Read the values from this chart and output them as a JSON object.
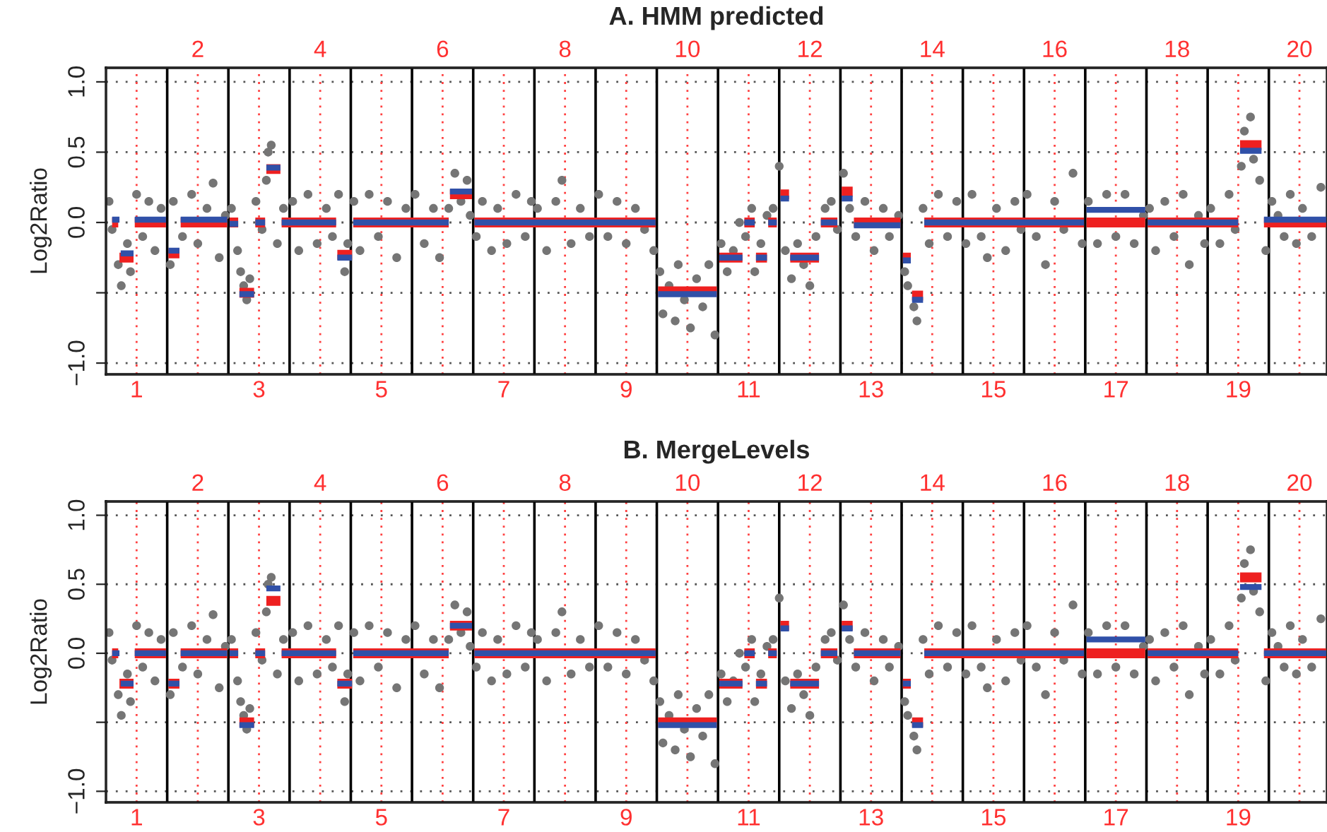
{
  "chart_data": [
    {
      "type": "scatter",
      "title": "A. HMM predicted",
      "ylabel": "Log2Ratio",
      "xlim": [
        0.5,
        20.45
      ],
      "ylim": [
        -1.08,
        1.1
      ],
      "yticks": [
        {
          "value": -1,
          "label": "−1.0"
        },
        {
          "value": -0.5,
          "label": null
        },
        {
          "value": 0,
          "label": "0.0"
        },
        {
          "value": 0.5,
          "label": "0.5"
        },
        {
          "value": 1,
          "label": "1.0"
        }
      ],
      "xticks": [
        {
          "value": 1,
          "label": "1"
        },
        {
          "value": 3,
          "label": "3"
        },
        {
          "value": 5,
          "label": "5"
        },
        {
          "value": 7,
          "label": "7"
        },
        {
          "value": 9,
          "label": "9"
        },
        {
          "value": 11,
          "label": "11"
        },
        {
          "value": 13,
          "label": "13"
        },
        {
          "value": 15,
          "label": "15"
        },
        {
          "value": 17,
          "label": "17"
        },
        {
          "value": 19,
          "label": "19"
        }
      ],
      "x2lim": [
        0.5,
        20.45
      ],
      "x2ticks": [
        {
          "value": 2,
          "label": "2"
        },
        {
          "value": 4,
          "label": "4"
        },
        {
          "value": 6,
          "label": "6"
        },
        {
          "value": 8,
          "label": "8"
        },
        {
          "value": 10,
          "label": "10"
        },
        {
          "value": 12,
          "label": "12"
        },
        {
          "value": 14,
          "label": "14"
        },
        {
          "value": 16,
          "label": "16"
        },
        {
          "value": 18,
          "label": "18"
        },
        {
          "value": 20,
          "label": "20"
        }
      ],
      "grid": "y",
      "ref_lines": [
        {
          "axis": "x",
          "value": 1.5,
          "color": "#000000"
        },
        {
          "axis": "x",
          "value": 2.5,
          "color": "#000000"
        },
        {
          "axis": "x",
          "value": 3.5,
          "color": "#000000"
        },
        {
          "axis": "x",
          "value": 4.5,
          "color": "#000000"
        },
        {
          "axis": "x",
          "value": 5.5,
          "color": "#000000"
        },
        {
          "axis": "x",
          "value": 6.5,
          "color": "#000000"
        },
        {
          "axis": "x",
          "value": 7.5,
          "color": "#000000"
        },
        {
          "axis": "x",
          "value": 8.5,
          "color": "#000000"
        },
        {
          "axis": "x",
          "value": 9.5,
          "color": "#000000"
        },
        {
          "axis": "x",
          "value": 10.5,
          "color": "#000000"
        },
        {
          "axis": "x",
          "value": 11.5,
          "color": "#000000"
        },
        {
          "axis": "x",
          "value": 12.5,
          "color": "#000000"
        },
        {
          "axis": "x",
          "value": 13.5,
          "color": "#000000"
        },
        {
          "axis": "x",
          "value": 14.5,
          "color": "#000000"
        },
        {
          "axis": "x",
          "value": 15.5,
          "color": "#000000"
        },
        {
          "axis": "x",
          "value": 16.5,
          "color": "#000000"
        },
        {
          "axis": "x",
          "value": 17.5,
          "color": "#000000"
        },
        {
          "axis": "x",
          "value": 18.5,
          "color": "#000000"
        },
        {
          "axis": "x",
          "value": 19.5,
          "color": "#000000"
        },
        {
          "axis": "x",
          "value": 1,
          "color": "#ff4040",
          "line_style": "dotted"
        },
        {
          "axis": "x",
          "value": 2,
          "color": "#ff4040",
          "line_style": "dotted"
        },
        {
          "axis": "x",
          "value": 3,
          "color": "#ff4040",
          "line_style": "dotted"
        },
        {
          "axis": "x",
          "value": 4,
          "color": "#ff4040",
          "line_style": "dotted"
        },
        {
          "axis": "x",
          "value": 5,
          "color": "#ff4040",
          "line_style": "dotted"
        },
        {
          "axis": "x",
          "value": 6,
          "color": "#ff4040",
          "line_style": "dotted"
        },
        {
          "axis": "x",
          "value": 7,
          "color": "#ff4040",
          "line_style": "dotted"
        },
        {
          "axis": "x",
          "value": 8,
          "color": "#ff4040",
          "line_style": "dotted"
        },
        {
          "axis": "x",
          "value": 9,
          "color": "#ff4040",
          "line_style": "dotted"
        },
        {
          "axis": "x",
          "value": 10,
          "color": "#ff4040",
          "line_style": "dotted"
        },
        {
          "axis": "x",
          "value": 11,
          "color": "#ff4040",
          "line_style": "dotted"
        },
        {
          "axis": "x",
          "value": 12,
          "color": "#ff4040",
          "line_style": "dotted"
        },
        {
          "axis": "x",
          "value": 13,
          "color": "#ff4040",
          "line_style": "dotted"
        },
        {
          "axis": "x",
          "value": 14,
          "color": "#ff4040",
          "line_style": "dotted"
        },
        {
          "axis": "x",
          "value": 15,
          "color": "#ff4040",
          "line_style": "dotted"
        },
        {
          "axis": "x",
          "value": 16,
          "color": "#ff4040",
          "line_style": "dotted"
        },
        {
          "axis": "x",
          "value": 17,
          "color": "#ff4040",
          "line_style": "dotted"
        },
        {
          "axis": "x",
          "value": 18,
          "color": "#ff4040",
          "line_style": "dotted"
        },
        {
          "axis": "x",
          "value": 19,
          "color": "#ff4040",
          "line_style": "dotted"
        },
        {
          "axis": "x",
          "value": 20,
          "color": "#ff4040",
          "line_style": "dotted"
        }
      ],
      "series": [
        {
          "type": "scatter",
          "color": "#757575",
          "x": [
            0.55,
            0.6,
            0.7,
            0.75,
            0.85,
            0.9,
            1.0,
            1.1,
            1.2,
            1.3,
            1.4,
            1.55,
            1.6,
            1.75,
            1.9,
            2.0,
            2.15,
            2.25,
            2.35,
            2.45,
            2.55,
            2.65,
            2.7,
            2.75,
            2.8,
            2.85,
            2.95,
            3.05,
            3.12,
            3.15,
            3.2,
            3.3,
            3.4,
            3.55,
            3.65,
            3.8,
            3.95,
            4.1,
            4.2,
            4.3,
            4.4,
            4.45,
            4.55,
            4.65,
            4.8,
            4.95,
            5.1,
            5.25,
            5.4,
            5.55,
            5.7,
            5.85,
            5.95,
            6.1,
            6.2,
            6.3,
            6.4,
            6.45,
            6.55,
            6.65,
            6.8,
            6.9,
            7.05,
            7.2,
            7.35,
            7.45,
            7.55,
            7.7,
            7.85,
            7.95,
            8.1,
            8.25,
            8.4,
            8.55,
            8.7,
            8.85,
            9.0,
            9.15,
            9.3,
            9.45,
            9.55,
            9.6,
            9.7,
            9.8,
            9.85,
            9.95,
            10.05,
            10.15,
            10.25,
            10.35,
            10.45,
            10.55,
            10.65,
            10.75,
            10.85,
            10.95,
            11.05,
            11.1,
            11.2,
            11.3,
            11.4,
            11.5,
            11.6,
            11.7,
            11.8,
            11.9,
            12.0,
            12.1,
            12.25,
            12.35,
            12.45,
            12.55,
            12.65,
            12.75,
            12.9,
            13.05,
            13.2,
            13.3,
            13.45,
            13.55,
            13.6,
            13.7,
            13.75,
            13.85,
            13.95,
            14.1,
            14.25,
            14.4,
            14.55,
            14.65,
            14.8,
            14.9,
            15.05,
            15.2,
            15.35,
            15.45,
            15.55,
            15.7,
            15.85,
            16.0,
            16.15,
            16.3,
            16.45,
            16.55,
            16.7,
            16.85,
            17.0,
            17.15,
            17.3,
            17.45,
            17.55,
            17.65,
            17.8,
            17.95,
            18.1,
            18.2,
            18.35,
            18.45,
            18.55,
            18.7,
            18.85,
            18.95,
            19.05,
            19.1,
            19.2,
            19.25,
            19.35,
            19.45,
            19.55,
            19.65,
            19.75,
            19.85,
            19.95,
            20.05,
            20.2,
            20.35
          ],
          "values": [
            0.15,
            -0.05,
            -0.3,
            -0.45,
            -0.15,
            -0.35,
            0.2,
            -0.1,
            0.15,
            -0.2,
            0.1,
            -0.3,
            0.15,
            -0.1,
            0.2,
            -0.15,
            0.1,
            0.28,
            -0.25,
            0.05,
            0.1,
            -0.2,
            -0.35,
            -0.45,
            -0.55,
            -0.4,
            0.15,
            -0.05,
            0.3,
            0.5,
            0.55,
            -0.15,
            0.1,
            0.15,
            -0.2,
            0.2,
            -0.15,
            0.1,
            -0.1,
            0.2,
            -0.35,
            -0.15,
            0.15,
            -0.2,
            0.2,
            -0.1,
            0.15,
            -0.25,
            0.1,
            0.2,
            -0.15,
            0.1,
            -0.25,
            0.1,
            0.35,
            0.15,
            0.3,
            0.05,
            -0.1,
            0.15,
            -0.2,
            0.1,
            -0.15,
            0.2,
            -0.1,
            0.15,
            0.1,
            -0.2,
            0.15,
            0.3,
            -0.15,
            0.1,
            -0.1,
            0.2,
            -0.1,
            0.15,
            -0.15,
            0.1,
            -0.05,
            -0.2,
            -0.35,
            -0.65,
            -0.45,
            -0.7,
            -0.3,
            -0.55,
            -0.75,
            -0.4,
            -0.6,
            -0.3,
            -0.8,
            -0.15,
            -0.35,
            -0.2,
            0.0,
            -0.1,
            0.1,
            -0.35,
            -0.15,
            0.05,
            0.1,
            0.4,
            -0.2,
            -0.4,
            -0.15,
            -0.3,
            -0.45,
            -0.1,
            0.1,
            0.15,
            -0.05,
            0.35,
            0.1,
            -0.1,
            0.15,
            -0.2,
            0.1,
            -0.1,
            0.05,
            -0.35,
            -0.45,
            -0.6,
            -0.7,
            0.1,
            -0.15,
            0.2,
            -0.1,
            0.15,
            -0.15,
            0.2,
            -0.1,
            -0.25,
            0.1,
            -0.2,
            0.15,
            -0.05,
            0.2,
            -0.1,
            -0.3,
            0.15,
            -0.05,
            0.35,
            -0.15,
            0.15,
            -0.15,
            0.2,
            -0.1,
            0.2,
            -0.15,
            0.05,
            0.1,
            -0.2,
            0.15,
            -0.1,
            0.2,
            -0.3,
            0.05,
            -0.15,
            0.1,
            -0.15,
            0.2,
            -0.05,
            0.4,
            0.65,
            0.75,
            0.45,
            0.3,
            -0.2,
            0.15,
            0.05,
            -0.1,
            0.2,
            -0.15,
            0.1,
            -0.1,
            0.25
          ]
        },
        {
          "type": "line",
          "color": "#ee2020",
          "x": [
            0.6,
            0.7,
            null,
            0.72,
            0.95,
            null,
            0.97,
            1.48,
            null,
            1.52,
            1.7,
            null,
            1.72,
            2.48,
            null,
            2.52,
            2.66,
            null,
            2.68,
            2.92,
            null,
            2.94,
            3.1,
            null,
            3.12,
            3.35,
            null,
            3.37,
            4.26,
            null,
            4.28,
            4.52,
            null,
            4.54,
            6.1,
            null,
            6.12,
            6.48,
            null,
            6.52,
            9.48,
            null,
            9.52,
            10.48,
            null,
            10.52,
            10.9,
            null,
            10.93,
            11.1,
            null,
            11.12,
            11.3,
            null,
            11.32,
            11.46,
            null,
            11.52,
            11.66,
            null,
            11.68,
            12.15,
            null,
            12.18,
            12.45,
            null,
            12.52,
            12.7,
            null,
            12.72,
            13.48,
            null,
            13.52,
            13.65,
            null,
            13.67,
            13.85,
            null,
            13.87,
            16.48,
            null,
            16.52,
            17.48,
            null,
            17.52,
            19.0,
            null,
            19.03,
            19.38,
            null,
            19.42,
            20.45
          ],
          "values": [
            0,
            0,
            null,
            -0.25,
            -0.25,
            null,
            0,
            0,
            null,
            -0.22,
            -0.22,
            null,
            0,
            0,
            null,
            0,
            0,
            null,
            -0.5,
            -0.5,
            null,
            0,
            0,
            null,
            0.38,
            0.38,
            null,
            0,
            0,
            null,
            -0.23,
            -0.23,
            null,
            0,
            0,
            null,
            0.2,
            0.2,
            null,
            0,
            0,
            null,
            -0.49,
            -0.49,
            null,
            -0.25,
            -0.25,
            null,
            0,
            0,
            null,
            -0.25,
            -0.25,
            null,
            0,
            0,
            null,
            0.2,
            0.2,
            null,
            -0.25,
            -0.25,
            null,
            0,
            0,
            null,
            0.22,
            0.22,
            null,
            0,
            0,
            null,
            -0.25,
            -0.25,
            null,
            -0.52,
            -0.52,
            null,
            0,
            0,
            null,
            0,
            0,
            null,
            0,
            0,
            null,
            0.55,
            0.55,
            null,
            0,
            0
          ]
        },
        {
          "type": "line",
          "color": "#3050a8",
          "x": [
            0.6,
            0.72,
            null,
            0.74,
            0.95,
            null,
            0.97,
            1.48,
            null,
            1.52,
            1.7,
            null,
            1.72,
            2.48,
            null,
            2.52,
            2.66,
            null,
            2.68,
            2.92,
            null,
            2.94,
            3.1,
            null,
            3.12,
            3.35,
            null,
            3.37,
            4.26,
            null,
            4.28,
            4.52,
            null,
            4.54,
            6.1,
            null,
            6.12,
            6.48,
            null,
            6.52,
            9.48,
            null,
            9.52,
            10.48,
            null,
            10.52,
            10.9,
            null,
            10.93,
            11.1,
            null,
            11.12,
            11.3,
            null,
            11.32,
            11.46,
            null,
            11.52,
            11.66,
            null,
            11.68,
            12.15,
            null,
            12.18,
            12.45,
            null,
            12.52,
            12.7,
            null,
            12.72,
            13.48,
            null,
            13.52,
            13.65,
            null,
            13.67,
            13.85,
            null,
            13.87,
            16.48,
            null,
            16.52,
            17.48,
            null,
            17.52,
            19.0,
            null,
            19.03,
            19.38,
            null,
            19.42,
            20.45
          ],
          "values": [
            0.02,
            0.02,
            null,
            -0.22,
            -0.22,
            null,
            0.02,
            0.02,
            null,
            -0.2,
            -0.2,
            null,
            0.02,
            0.02,
            null,
            -0.01,
            -0.01,
            null,
            -0.51,
            -0.51,
            null,
            0,
            0,
            null,
            0.39,
            0.39,
            null,
            0,
            0,
            null,
            -0.25,
            -0.25,
            null,
            0,
            0,
            null,
            0.22,
            0.22,
            null,
            0,
            0,
            null,
            -0.51,
            -0.51,
            null,
            -0.25,
            -0.25,
            null,
            0,
            0,
            null,
            -0.25,
            -0.25,
            null,
            0,
            0,
            null,
            0.17,
            0.17,
            null,
            -0.25,
            -0.25,
            null,
            0,
            0,
            null,
            0.17,
            0.17,
            null,
            -0.02,
            -0.02,
            null,
            -0.27,
            -0.27,
            null,
            -0.55,
            -0.55,
            null,
            0,
            0,
            null,
            0.09,
            0.09,
            null,
            0,
            0,
            null,
            0.51,
            0.51,
            null,
            0.02,
            0.02
          ]
        }
      ]
    },
    {
      "type": "scatter",
      "title": "B. MergeLevels",
      "ylabel": "Log2Ratio",
      "xlim": [
        0.5,
        20.45
      ],
      "ylim": [
        -1.08,
        1.1
      ],
      "yticks": [
        {
          "value": -1,
          "label": "−1.0"
        },
        {
          "value": -0.5,
          "label": null
        },
        {
          "value": 0,
          "label": "0.0"
        },
        {
          "value": 0.5,
          "label": "0.5"
        },
        {
          "value": 1,
          "label": "1.0"
        }
      ],
      "xticks": [
        {
          "value": 1,
          "label": "1"
        },
        {
          "value": 3,
          "label": "3"
        },
        {
          "value": 5,
          "label": "5"
        },
        {
          "value": 7,
          "label": "7"
        },
        {
          "value": 9,
          "label": "9"
        },
        {
          "value": 11,
          "label": "11"
        },
        {
          "value": 13,
          "label": "13"
        },
        {
          "value": 15,
          "label": "15"
        },
        {
          "value": 17,
          "label": "17"
        },
        {
          "value": 19,
          "label": "19"
        }
      ],
      "x2lim": [
        0.5,
        20.45
      ],
      "x2ticks": [
        {
          "value": 2,
          "label": "2"
        },
        {
          "value": 4,
          "label": "4"
        },
        {
          "value": 6,
          "label": "6"
        },
        {
          "value": 8,
          "label": "8"
        },
        {
          "value": 10,
          "label": "10"
        },
        {
          "value": 12,
          "label": "12"
        },
        {
          "value": 14,
          "label": "14"
        },
        {
          "value": 16,
          "label": "16"
        },
        {
          "value": 18,
          "label": "18"
        },
        {
          "value": 20,
          "label": "20"
        }
      ],
      "grid": "y",
      "ref_lines": [
        {
          "axis": "x",
          "value": 1.5,
          "color": "#000000"
        },
        {
          "axis": "x",
          "value": 2.5,
          "color": "#000000"
        },
        {
          "axis": "x",
          "value": 3.5,
          "color": "#000000"
        },
        {
          "axis": "x",
          "value": 4.5,
          "color": "#000000"
        },
        {
          "axis": "x",
          "value": 5.5,
          "color": "#000000"
        },
        {
          "axis": "x",
          "value": 6.5,
          "color": "#000000"
        },
        {
          "axis": "x",
          "value": 7.5,
          "color": "#000000"
        },
        {
          "axis": "x",
          "value": 8.5,
          "color": "#000000"
        },
        {
          "axis": "x",
          "value": 9.5,
          "color": "#000000"
        },
        {
          "axis": "x",
          "value": 10.5,
          "color": "#000000"
        },
        {
          "axis": "x",
          "value": 11.5,
          "color": "#000000"
        },
        {
          "axis": "x",
          "value": 12.5,
          "color": "#000000"
        },
        {
          "axis": "x",
          "value": 13.5,
          "color": "#000000"
        },
        {
          "axis": "x",
          "value": 14.5,
          "color": "#000000"
        },
        {
          "axis": "x",
          "value": 15.5,
          "color": "#000000"
        },
        {
          "axis": "x",
          "value": 16.5,
          "color": "#000000"
        },
        {
          "axis": "x",
          "value": 17.5,
          "color": "#000000"
        },
        {
          "axis": "x",
          "value": 18.5,
          "color": "#000000"
        },
        {
          "axis": "x",
          "value": 19.5,
          "color": "#000000"
        },
        {
          "axis": "x",
          "value": 1,
          "color": "#ff4040",
          "line_style": "dotted"
        },
        {
          "axis": "x",
          "value": 2,
          "color": "#ff4040",
          "line_style": "dotted"
        },
        {
          "axis": "x",
          "value": 3,
          "color": "#ff4040",
          "line_style": "dotted"
        },
        {
          "axis": "x",
          "value": 4,
          "color": "#ff4040",
          "line_style": "dotted"
        },
        {
          "axis": "x",
          "value": 5,
          "color": "#ff4040",
          "line_style": "dotted"
        },
        {
          "axis": "x",
          "value": 6,
          "color": "#ff4040",
          "line_style": "dotted"
        },
        {
          "axis": "x",
          "value": 7,
          "color": "#ff4040",
          "line_style": "dotted"
        },
        {
          "axis": "x",
          "value": 8,
          "color": "#ff4040",
          "line_style": "dotted"
        },
        {
          "axis": "x",
          "value": 9,
          "color": "#ff4040",
          "line_style": "dotted"
        },
        {
          "axis": "x",
          "value": 10,
          "color": "#ff4040",
          "line_style": "dotted"
        },
        {
          "axis": "x",
          "value": 11,
          "color": "#ff4040",
          "line_style": "dotted"
        },
        {
          "axis": "x",
          "value": 12,
          "color": "#ff4040",
          "line_style": "dotted"
        },
        {
          "axis": "x",
          "value": 13,
          "color": "#ff4040",
          "line_style": "dotted"
        },
        {
          "axis": "x",
          "value": 14,
          "color": "#ff4040",
          "line_style": "dotted"
        },
        {
          "axis": "x",
          "value": 15,
          "color": "#ff4040",
          "line_style": "dotted"
        },
        {
          "axis": "x",
          "value": 16,
          "color": "#ff4040",
          "line_style": "dotted"
        },
        {
          "axis": "x",
          "value": 17,
          "color": "#ff4040",
          "line_style": "dotted"
        },
        {
          "axis": "x",
          "value": 18,
          "color": "#ff4040",
          "line_style": "dotted"
        },
        {
          "axis": "x",
          "value": 19,
          "color": "#ff4040",
          "line_style": "dotted"
        },
        {
          "axis": "x",
          "value": 20,
          "color": "#ff4040",
          "line_style": "dotted"
        }
      ],
      "series": [
        {
          "type": "scatter",
          "color": "#757575",
          "x": [
            0.55,
            0.6,
            0.7,
            0.75,
            0.85,
            0.9,
            1.0,
            1.1,
            1.2,
            1.3,
            1.4,
            1.55,
            1.6,
            1.75,
            1.9,
            2.0,
            2.15,
            2.25,
            2.35,
            2.45,
            2.55,
            2.65,
            2.7,
            2.75,
            2.8,
            2.85,
            2.95,
            3.05,
            3.12,
            3.15,
            3.2,
            3.3,
            3.4,
            3.55,
            3.65,
            3.8,
            3.95,
            4.1,
            4.2,
            4.3,
            4.4,
            4.45,
            4.55,
            4.65,
            4.8,
            4.95,
            5.1,
            5.25,
            5.4,
            5.55,
            5.7,
            5.85,
            5.95,
            6.1,
            6.2,
            6.3,
            6.4,
            6.45,
            6.55,
            6.65,
            6.8,
            6.9,
            7.05,
            7.2,
            7.35,
            7.45,
            7.55,
            7.7,
            7.85,
            7.95,
            8.1,
            8.25,
            8.4,
            8.55,
            8.7,
            8.85,
            9.0,
            9.15,
            9.3,
            9.45,
            9.55,
            9.6,
            9.7,
            9.8,
            9.85,
            9.95,
            10.05,
            10.15,
            10.25,
            10.35,
            10.45,
            10.55,
            10.65,
            10.75,
            10.85,
            10.95,
            11.05,
            11.1,
            11.2,
            11.3,
            11.4,
            11.5,
            11.6,
            11.7,
            11.8,
            11.9,
            12.0,
            12.1,
            12.25,
            12.35,
            12.45,
            12.55,
            12.65,
            12.75,
            12.9,
            13.05,
            13.2,
            13.3,
            13.45,
            13.55,
            13.6,
            13.7,
            13.75,
            13.85,
            13.95,
            14.1,
            14.25,
            14.4,
            14.55,
            14.65,
            14.8,
            14.9,
            15.05,
            15.2,
            15.35,
            15.45,
            15.55,
            15.7,
            15.85,
            16.0,
            16.15,
            16.3,
            16.45,
            16.55,
            16.7,
            16.85,
            17.0,
            17.15,
            17.3,
            17.45,
            17.55,
            17.65,
            17.8,
            17.95,
            18.1,
            18.2,
            18.35,
            18.45,
            18.55,
            18.7,
            18.85,
            18.95,
            19.05,
            19.1,
            19.2,
            19.25,
            19.35,
            19.45,
            19.55,
            19.65,
            19.75,
            19.85,
            19.95,
            20.05,
            20.2,
            20.35
          ],
          "values": [
            0.15,
            -0.05,
            -0.3,
            -0.45,
            -0.15,
            -0.35,
            0.2,
            -0.1,
            0.15,
            -0.2,
            0.1,
            -0.3,
            0.15,
            -0.1,
            0.2,
            -0.15,
            0.1,
            0.28,
            -0.25,
            0.05,
            0.1,
            -0.2,
            -0.35,
            -0.45,
            -0.55,
            -0.4,
            0.15,
            -0.05,
            0.3,
            0.5,
            0.55,
            -0.15,
            0.1,
            0.15,
            -0.2,
            0.2,
            -0.15,
            0.1,
            -0.1,
            0.2,
            -0.35,
            -0.15,
            0.15,
            -0.2,
            0.2,
            -0.1,
            0.15,
            -0.25,
            0.1,
            0.2,
            -0.15,
            0.1,
            -0.25,
            0.1,
            0.35,
            0.15,
            0.3,
            0.05,
            -0.1,
            0.15,
            -0.2,
            0.1,
            -0.15,
            0.2,
            -0.1,
            0.15,
            0.1,
            -0.2,
            0.15,
            0.3,
            -0.15,
            0.1,
            -0.1,
            0.2,
            -0.1,
            0.15,
            -0.15,
            0.1,
            -0.05,
            -0.2,
            -0.35,
            -0.65,
            -0.45,
            -0.7,
            -0.3,
            -0.55,
            -0.75,
            -0.4,
            -0.6,
            -0.3,
            -0.8,
            -0.15,
            -0.35,
            -0.2,
            0.0,
            -0.1,
            0.1,
            -0.35,
            -0.15,
            0.05,
            0.1,
            0.4,
            -0.2,
            -0.4,
            -0.15,
            -0.3,
            -0.45,
            -0.1,
            0.1,
            0.15,
            -0.05,
            0.35,
            0.1,
            -0.1,
            0.15,
            -0.2,
            0.1,
            -0.1,
            0.05,
            -0.35,
            -0.45,
            -0.6,
            -0.7,
            0.1,
            -0.15,
            0.2,
            -0.1,
            0.15,
            -0.15,
            0.2,
            -0.1,
            -0.25,
            0.1,
            -0.2,
            0.15,
            -0.05,
            0.2,
            -0.1,
            -0.3,
            0.15,
            -0.05,
            0.35,
            -0.15,
            0.15,
            -0.15,
            0.2,
            -0.1,
            0.2,
            -0.15,
            0.05,
            0.1,
            -0.2,
            0.15,
            -0.1,
            0.2,
            -0.3,
            0.05,
            -0.15,
            0.1,
            -0.15,
            0.2,
            -0.05,
            0.4,
            0.65,
            0.75,
            0.45,
            0.3,
            -0.2,
            0.15,
            0.05,
            -0.1,
            0.2,
            -0.15,
            0.1,
            -0.1,
            0.25
          ]
        },
        {
          "type": "line",
          "color": "#ee2020",
          "x": [
            0.6,
            0.7,
            null,
            0.72,
            0.95,
            null,
            0.97,
            1.48,
            null,
            1.52,
            1.7,
            null,
            1.72,
            2.48,
            null,
            2.52,
            2.66,
            null,
            2.68,
            2.92,
            null,
            2.94,
            3.1,
            null,
            3.12,
            3.35,
            null,
            3.37,
            4.26,
            null,
            4.28,
            4.52,
            null,
            4.54,
            6.1,
            null,
            6.12,
            6.48,
            null,
            6.52,
            9.48,
            null,
            9.52,
            10.48,
            null,
            10.52,
            10.9,
            null,
            10.93,
            11.1,
            null,
            11.12,
            11.3,
            null,
            11.32,
            11.46,
            null,
            11.52,
            11.66,
            null,
            11.68,
            12.15,
            null,
            12.18,
            12.45,
            null,
            12.52,
            12.7,
            null,
            12.72,
            13.48,
            null,
            13.52,
            13.65,
            null,
            13.67,
            13.85,
            null,
            13.87,
            16.48,
            null,
            16.52,
            17.48,
            null,
            17.52,
            19.0,
            null,
            19.03,
            19.38,
            null,
            19.42,
            20.45
          ],
          "values": [
            0,
            0,
            null,
            -0.22,
            -0.22,
            null,
            0,
            0,
            null,
            -0.22,
            -0.22,
            null,
            0,
            0,
            null,
            0,
            0,
            null,
            -0.5,
            -0.5,
            null,
            0,
            0,
            null,
            0.38,
            0.38,
            null,
            0,
            0,
            null,
            -0.22,
            -0.22,
            null,
            0,
            0,
            null,
            0.2,
            0.2,
            null,
            0,
            0,
            null,
            -0.5,
            -0.5,
            null,
            -0.22,
            -0.22,
            null,
            0,
            0,
            null,
            -0.22,
            -0.22,
            null,
            0,
            0,
            null,
            0.2,
            0.2,
            null,
            -0.22,
            -0.22,
            null,
            0,
            0,
            null,
            0.2,
            0.2,
            null,
            0,
            0,
            null,
            -0.22,
            -0.22,
            null,
            -0.5,
            -0.5,
            null,
            0,
            0,
            null,
            0,
            0,
            null,
            0,
            0,
            null,
            0.55,
            0.55,
            null,
            0,
            0
          ]
        },
        {
          "type": "line",
          "color": "#3050a8",
          "x": [
            0.6,
            0.72,
            null,
            0.74,
            0.95,
            null,
            0.97,
            1.48,
            null,
            1.52,
            1.7,
            null,
            1.72,
            2.48,
            null,
            2.52,
            2.66,
            null,
            2.68,
            2.92,
            null,
            2.94,
            3.1,
            null,
            3.12,
            3.35,
            null,
            3.37,
            4.26,
            null,
            4.28,
            4.52,
            null,
            4.54,
            6.1,
            null,
            6.12,
            6.48,
            null,
            6.52,
            9.48,
            null,
            9.52,
            10.48,
            null,
            10.52,
            10.9,
            null,
            10.93,
            11.1,
            null,
            11.12,
            11.3,
            null,
            11.32,
            11.46,
            null,
            11.52,
            11.66,
            null,
            11.68,
            12.15,
            null,
            12.18,
            12.45,
            null,
            12.52,
            12.7,
            null,
            12.72,
            13.48,
            null,
            13.52,
            13.65,
            null,
            13.67,
            13.85,
            null,
            13.87,
            16.48,
            null,
            16.52,
            17.48,
            null,
            17.52,
            19.0,
            null,
            19.03,
            19.38,
            null,
            19.42,
            20.45
          ],
          "values": [
            0,
            0,
            null,
            -0.22,
            -0.22,
            null,
            0,
            0,
            null,
            -0.22,
            -0.22,
            null,
            0,
            0,
            null,
            0,
            0,
            null,
            -0.52,
            -0.52,
            null,
            0,
            0,
            null,
            0.47,
            0.47,
            null,
            0,
            0,
            null,
            -0.22,
            -0.22,
            null,
            0,
            0,
            null,
            0.2,
            0.2,
            null,
            0,
            0,
            null,
            -0.52,
            -0.52,
            null,
            -0.22,
            -0.22,
            null,
            0,
            0,
            null,
            -0.22,
            -0.22,
            null,
            0,
            0,
            null,
            0.18,
            0.18,
            null,
            -0.22,
            -0.22,
            null,
            0,
            0,
            null,
            0.18,
            0.18,
            null,
            0,
            0,
            null,
            -0.22,
            -0.22,
            null,
            -0.52,
            -0.52,
            null,
            0,
            0,
            null,
            0.1,
            0.1,
            null,
            0,
            0,
            null,
            0.48,
            0.48,
            null,
            0,
            0
          ]
        }
      ]
    }
  ]
}
